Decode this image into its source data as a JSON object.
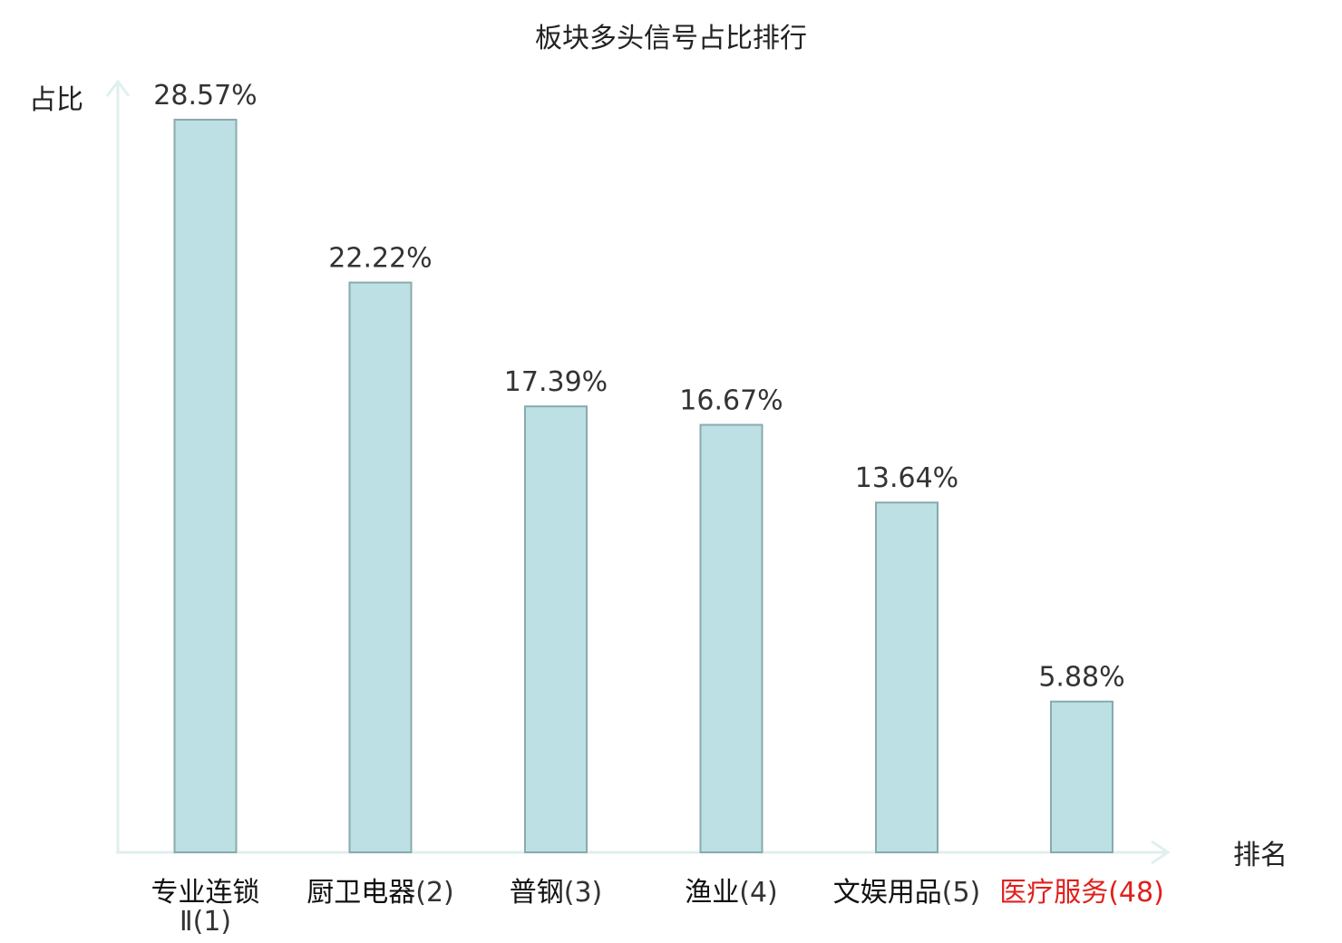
{
  "chart_data": {
    "type": "bar",
    "title": "板块多头信号占比排行",
    "ylabel": "占比",
    "xlabel": "排名",
    "grid": false,
    "ylim": [
      0,
      30
    ],
    "categories": [
      {
        "name": "专业连锁Ⅱ",
        "rank": "(1)",
        "highlight": false
      },
      {
        "name": "厨卫电器",
        "rank": "(2)",
        "highlight": false
      },
      {
        "name": "普钢",
        "rank": "(3)",
        "highlight": false
      },
      {
        "name": "渔业",
        "rank": "(4)",
        "highlight": false
      },
      {
        "name": "文娱用品",
        "rank": "(5)",
        "highlight": false
      },
      {
        "name": "医疗服务",
        "rank": "(48)",
        "highlight": true
      }
    ],
    "values": [
      28.57,
      22.22,
      17.39,
      16.67,
      13.64,
      5.88
    ],
    "value_labels": [
      "28.57%",
      "22.22%",
      "17.39%",
      "16.67%",
      "13.64%",
      "5.88%"
    ],
    "colors": {
      "bar_fill": "#bce0e3",
      "bar_stroke": "#8aaaad",
      "axis": "#dff0ee",
      "text": "#333333",
      "highlight": "#e0201c"
    }
  }
}
